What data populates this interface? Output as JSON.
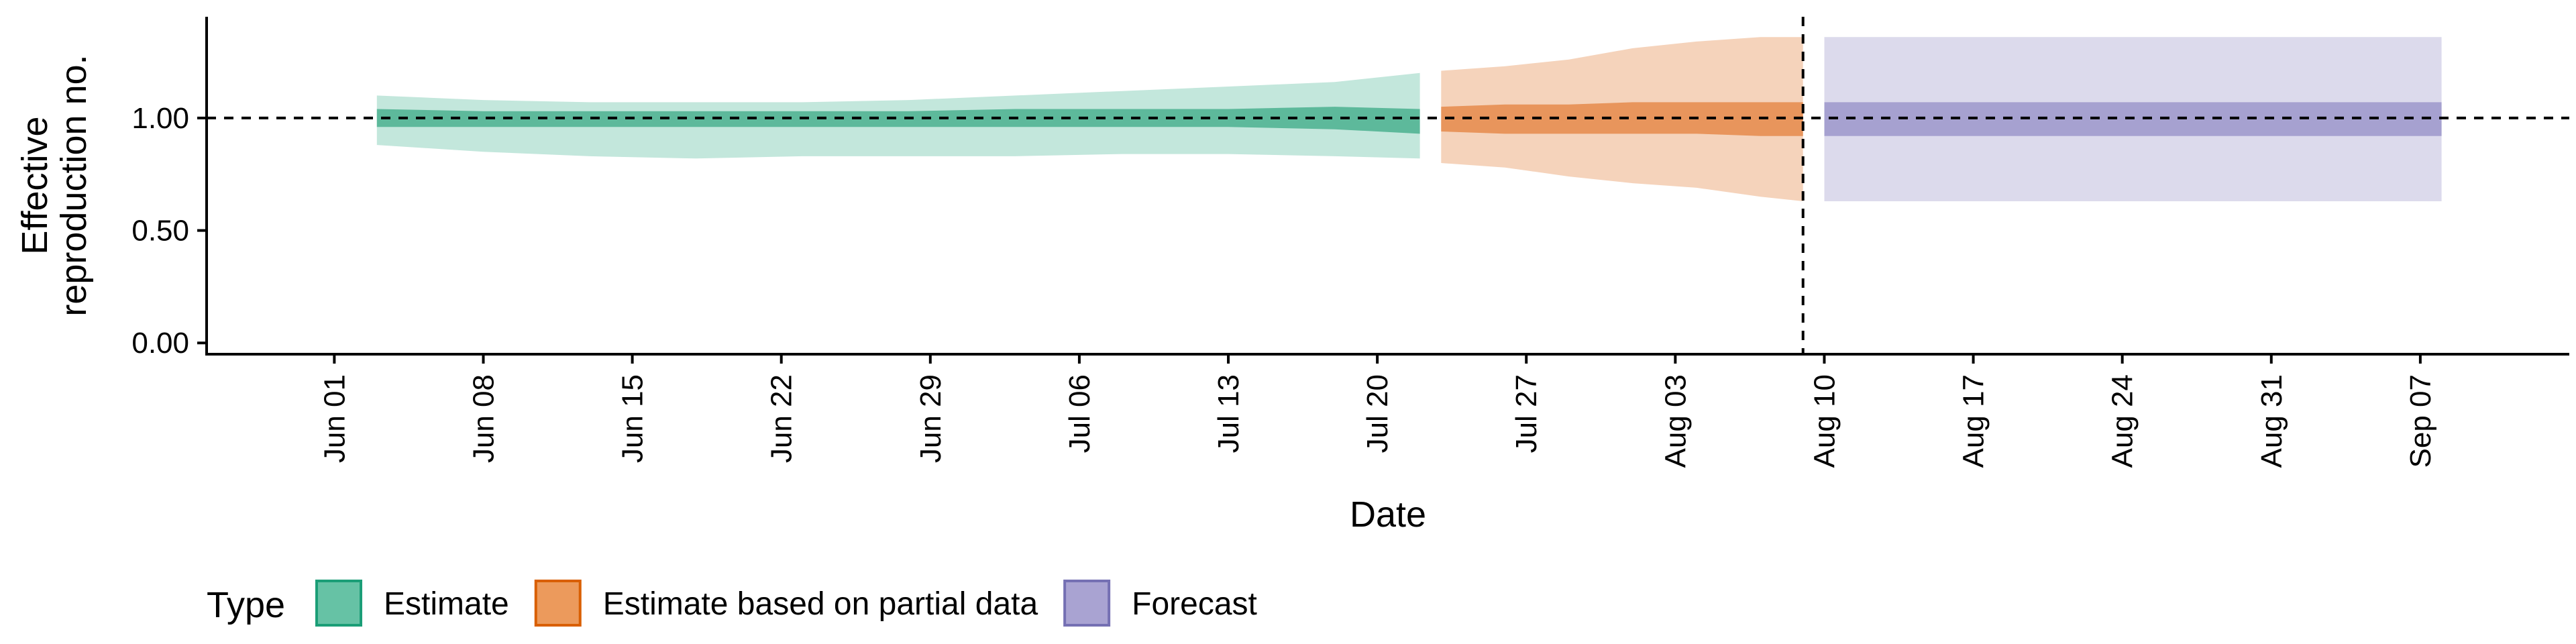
{
  "chart_data": {
    "type": "area",
    "ylabel_lines": [
      "Effective",
      "reproduction no."
    ],
    "xlabel": "Date",
    "x_tick_labels": [
      "Jun 01",
      "Jun 08",
      "Jun 15",
      "Jun 22",
      "Jun 29",
      "Jul 06",
      "Jul 13",
      "Jul 20",
      "Jul 27",
      "Aug 03",
      "Aug 10",
      "Aug 17",
      "Aug 24",
      "Aug 31",
      "Sep 07"
    ],
    "x_tick_dates": [
      "2020-06-01",
      "2020-06-08",
      "2020-06-15",
      "2020-06-22",
      "2020-06-29",
      "2020-07-06",
      "2020-07-13",
      "2020-07-20",
      "2020-07-27",
      "2020-08-03",
      "2020-08-10",
      "2020-08-17",
      "2020-08-24",
      "2020-08-31",
      "2020-09-07"
    ],
    "x_range": [
      "2020-05-26",
      "2020-09-14"
    ],
    "y_tick_labels": [
      "0.00",
      "0.50",
      "1.00"
    ],
    "y_ticks": [
      0,
      0.5,
      1.0
    ],
    "ylim": [
      -0.05,
      1.45
    ],
    "reference_line_y": 1.0,
    "forecast_start_line_date": "2020-08-09",
    "grid": false,
    "legend": {
      "title": "Type",
      "position": "bottom-left",
      "entries": [
        {
          "label": "Estimate",
          "fill": "#66c2a5",
          "stroke": "#1b9e77"
        },
        {
          "label": "Estimate based on partial data",
          "fill": "#ec9a5c",
          "stroke": "#d95f02"
        },
        {
          "label": "Forecast",
          "fill": "#a9a3d2",
          "stroke": "#7570b3"
        }
      ]
    },
    "series": [
      {
        "name": "Estimate",
        "color": "#1b9e77",
        "outer_color": "#c3e7dc",
        "inner_color": "#5db99b",
        "points": [
          {
            "date": "2020-06-03",
            "lo90": 0.88,
            "hi90": 1.1,
            "lo50": 0.96,
            "hi50": 1.04
          },
          {
            "date": "2020-06-08",
            "lo90": 0.85,
            "hi90": 1.08,
            "lo50": 0.96,
            "hi50": 1.03
          },
          {
            "date": "2020-06-13",
            "lo90": 0.83,
            "hi90": 1.07,
            "lo50": 0.96,
            "hi50": 1.03
          },
          {
            "date": "2020-06-18",
            "lo90": 0.82,
            "hi90": 1.07,
            "lo50": 0.96,
            "hi50": 1.03
          },
          {
            "date": "2020-06-23",
            "lo90": 0.83,
            "hi90": 1.07,
            "lo50": 0.96,
            "hi50": 1.03
          },
          {
            "date": "2020-06-28",
            "lo90": 0.83,
            "hi90": 1.08,
            "lo50": 0.96,
            "hi50": 1.03
          },
          {
            "date": "2020-07-03",
            "lo90": 0.83,
            "hi90": 1.1,
            "lo50": 0.96,
            "hi50": 1.04
          },
          {
            "date": "2020-07-08",
            "lo90": 0.84,
            "hi90": 1.12,
            "lo50": 0.96,
            "hi50": 1.04
          },
          {
            "date": "2020-07-13",
            "lo90": 0.84,
            "hi90": 1.14,
            "lo50": 0.96,
            "hi50": 1.04
          },
          {
            "date": "2020-07-18",
            "lo90": 0.83,
            "hi90": 1.16,
            "lo50": 0.95,
            "hi50": 1.05
          },
          {
            "date": "2020-07-22",
            "lo90": 0.82,
            "hi90": 1.2,
            "lo50": 0.93,
            "hi50": 1.04
          }
        ]
      },
      {
        "name": "Estimate based on partial data",
        "color": "#d95f02",
        "outer_color": "#f5d3bb",
        "inner_color": "#e8955c",
        "points": [
          {
            "date": "2020-07-23",
            "lo90": 0.8,
            "hi90": 1.21,
            "lo50": 0.94,
            "hi50": 1.05
          },
          {
            "date": "2020-07-26",
            "lo90": 0.78,
            "hi90": 1.23,
            "lo50": 0.93,
            "hi50": 1.06
          },
          {
            "date": "2020-07-29",
            "lo90": 0.74,
            "hi90": 1.26,
            "lo50": 0.93,
            "hi50": 1.06
          },
          {
            "date": "2020-08-01",
            "lo90": 0.71,
            "hi90": 1.31,
            "lo50": 0.93,
            "hi50": 1.07
          },
          {
            "date": "2020-08-04",
            "lo90": 0.69,
            "hi90": 1.34,
            "lo50": 0.93,
            "hi50": 1.07
          },
          {
            "date": "2020-08-07",
            "lo90": 0.65,
            "hi90": 1.36,
            "lo50": 0.92,
            "hi50": 1.07
          },
          {
            "date": "2020-08-09",
            "lo90": 0.63,
            "hi90": 1.36,
            "lo50": 0.92,
            "hi50": 1.07
          }
        ]
      },
      {
        "name": "Forecast",
        "color": "#7570b3",
        "outer_color": "#dcdaec",
        "inner_color": "#a6a1d0",
        "points": [
          {
            "date": "2020-08-10",
            "lo90": 0.63,
            "hi90": 1.36,
            "lo50": 0.92,
            "hi50": 1.07
          },
          {
            "date": "2020-09-08",
            "lo90": 0.63,
            "hi90": 1.36,
            "lo50": 0.92,
            "hi50": 1.07
          }
        ]
      }
    ]
  }
}
